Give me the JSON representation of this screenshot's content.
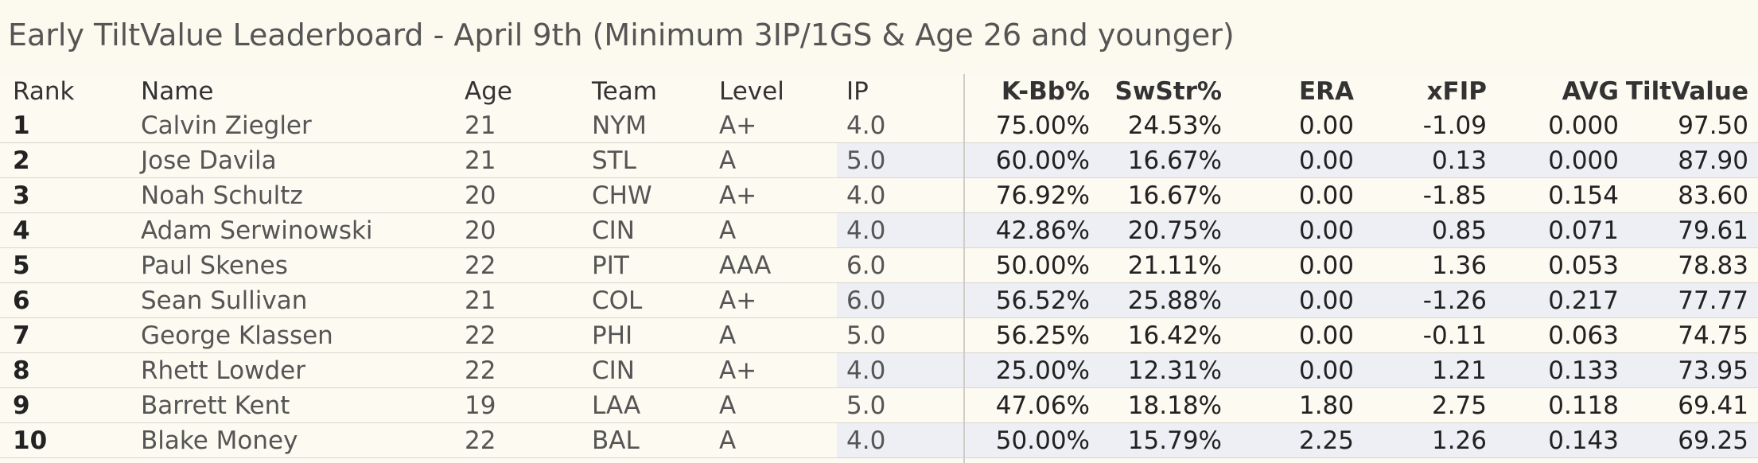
{
  "title": "Early TiltValue Leaderboard - April 9th (Minimum 3IP/1GS & Age 26 and younger)",
  "columns": {
    "rank": "Rank",
    "name": "Name",
    "age": "Age",
    "team": "Team",
    "level": "Level",
    "ip": "IP",
    "kbb": "K-Bb%",
    "swstr": "SwStr%",
    "era": "ERA",
    "xfip": "xFIP",
    "avg": "AVG",
    "tiltvalue": "TiltValue"
  },
  "colors": {
    "background": "#fdfaf2",
    "alt_row": "#eeeff4",
    "divider": "#d8d6cf"
  },
  "rows": [
    {
      "rank": "1",
      "name": "Calvin Ziegler",
      "age": "21",
      "team": "NYM",
      "level": "A+",
      "ip": "4.0",
      "kbb": "75.00%",
      "swstr": "24.53%",
      "era": "0.00",
      "xfip": "-1.09",
      "avg": "0.000",
      "tiltvalue": "97.50"
    },
    {
      "rank": "2",
      "name": "Jose Davila",
      "age": "21",
      "team": "STL",
      "level": "A",
      "ip": "5.0",
      "kbb": "60.00%",
      "swstr": "16.67%",
      "era": "0.00",
      "xfip": "0.13",
      "avg": "0.000",
      "tiltvalue": "87.90"
    },
    {
      "rank": "3",
      "name": "Noah Schultz",
      "age": "20",
      "team": "CHW",
      "level": "A+",
      "ip": "4.0",
      "kbb": "76.92%",
      "swstr": "16.67%",
      "era": "0.00",
      "xfip": "-1.85",
      "avg": "0.154",
      "tiltvalue": "83.60"
    },
    {
      "rank": "4",
      "name": "Adam Serwinowski",
      "age": "20",
      "team": "CIN",
      "level": "A",
      "ip": "4.0",
      "kbb": "42.86%",
      "swstr": "20.75%",
      "era": "0.00",
      "xfip": "0.85",
      "avg": "0.071",
      "tiltvalue": "79.61"
    },
    {
      "rank": "5",
      "name": "Paul Skenes",
      "age": "22",
      "team": "PIT",
      "level": "AAA",
      "ip": "6.0",
      "kbb": "50.00%",
      "swstr": "21.11%",
      "era": "0.00",
      "xfip": "1.36",
      "avg": "0.053",
      "tiltvalue": "78.83"
    },
    {
      "rank": "6",
      "name": "Sean Sullivan",
      "age": "21",
      "team": "COL",
      "level": "A+",
      "ip": "6.0",
      "kbb": "56.52%",
      "swstr": "25.88%",
      "era": "0.00",
      "xfip": "-1.26",
      "avg": "0.217",
      "tiltvalue": "77.77"
    },
    {
      "rank": "7",
      "name": "George Klassen",
      "age": "22",
      "team": "PHI",
      "level": "A",
      "ip": "5.0",
      "kbb": "56.25%",
      "swstr": "16.42%",
      "era": "0.00",
      "xfip": "-0.11",
      "avg": "0.063",
      "tiltvalue": "74.75"
    },
    {
      "rank": "8",
      "name": "Rhett Lowder",
      "age": "22",
      "team": "CIN",
      "level": "A+",
      "ip": "4.0",
      "kbb": "25.00%",
      "swstr": "12.31%",
      "era": "0.00",
      "xfip": "1.21",
      "avg": "0.133",
      "tiltvalue": "73.95"
    },
    {
      "rank": "9",
      "name": "Barrett Kent",
      "age": "19",
      "team": "LAA",
      "level": "A",
      "ip": "5.0",
      "kbb": "47.06%",
      "swstr": "18.18%",
      "era": "1.80",
      "xfip": "2.75",
      "avg": "0.118",
      "tiltvalue": "69.41"
    },
    {
      "rank": "10",
      "name": "Blake Money",
      "age": "22",
      "team": "BAL",
      "level": "A",
      "ip": "4.0",
      "kbb": "50.00%",
      "swstr": "15.79%",
      "era": "2.25",
      "xfip": "1.26",
      "avg": "0.143",
      "tiltvalue": "69.25"
    }
  ]
}
